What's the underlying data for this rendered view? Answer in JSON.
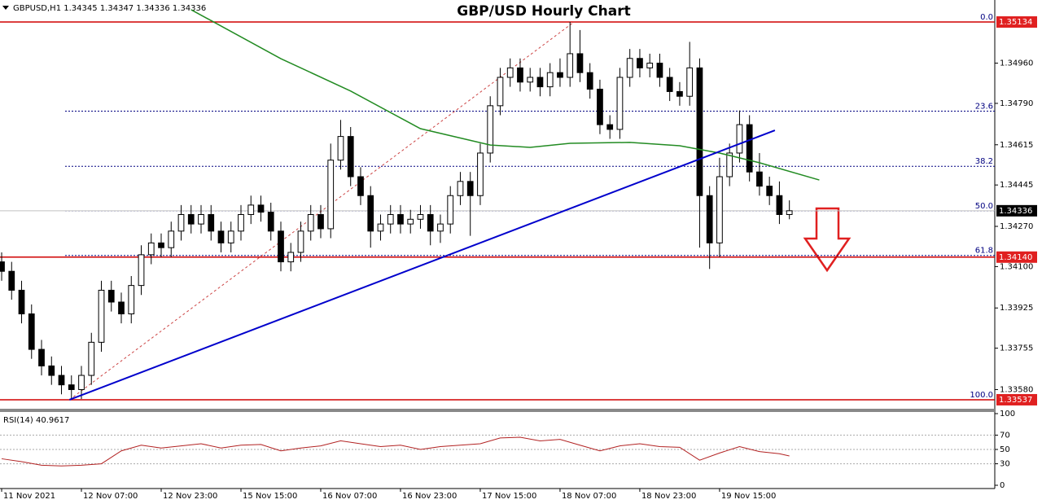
{
  "chart_data": {
    "type": "candlestick",
    "title": "GBP/USD Hourly Chart",
    "symbol": "GBPUSD,H1",
    "ohlc_header": [
      1.34345,
      1.34347,
      1.34336,
      1.34336
    ],
    "xlim": [
      -0.33,
      199.2
    ],
    "ylim": [
      1.33499,
      1.35227
    ],
    "xticks": [
      {
        "value": 0,
        "label": "11 Nov 2021"
      },
      {
        "value": 16,
        "label": "12 Nov 07:00"
      },
      {
        "value": 32,
        "label": "12 Nov 23:00"
      },
      {
        "value": 48,
        "label": "15 Nov 15:00"
      },
      {
        "value": 64,
        "label": "16 Nov 07:00"
      },
      {
        "value": 80,
        "label": "16 Nov 23:00"
      },
      {
        "value": 96,
        "label": "17 Nov 15:00"
      },
      {
        "value": 112,
        "label": "18 Nov 07:00"
      },
      {
        "value": 128,
        "label": "18 Nov 23:00"
      },
      {
        "value": 144,
        "label": "19 Nov 15:00"
      }
    ],
    "yticks": [
      {
        "value": 1.3496,
        "label": "1.34960"
      },
      {
        "value": 1.3479,
        "label": "1.34790"
      },
      1.34615,
      1.34445,
      {
        "value": 1.3427,
        "label": "1.34270"
      },
      {
        "value": 1.341,
        "label": "1.34100"
      },
      1.33925,
      1.33755,
      {
        "value": 1.3358,
        "label": "1.33580"
      }
    ],
    "key_levels": [
      1.35134,
      {
        "value": 1.3414,
        "label": "1.34140"
      },
      1.33537
    ],
    "current_price": 1.34336,
    "fibonacci": {
      "high": 1.35134,
      "low": 1.33537,
      "levels": [
        {
          "value": 0,
          "label": "0.0"
        },
        23.6,
        38.2,
        {
          "value": 50,
          "label": "50.0"
        },
        61.8,
        {
          "value": 100,
          "label": "100.0"
        }
      ]
    },
    "candles": {
      "x": [
        0,
        2,
        4,
        6,
        8,
        10,
        12,
        14,
        16,
        18,
        20,
        22,
        24,
        26,
        28,
        30,
        32,
        34,
        36,
        38,
        40,
        42,
        44,
        46,
        48,
        50,
        52,
        54,
        56,
        58,
        60,
        62,
        64,
        66,
        68,
        70,
        72,
        74,
        76,
        78,
        80,
        82,
        84,
        86,
        88,
        90,
        92,
        94,
        96,
        98,
        100,
        102,
        104,
        106,
        108,
        110,
        112,
        114,
        116,
        118,
        120,
        122,
        124,
        126,
        128,
        130,
        132,
        134,
        136,
        138,
        140,
        142,
        144,
        146,
        148,
        150,
        152,
        154,
        156,
        158
      ],
      "open": [
        1.3412,
        1.3408,
        1.34,
        1.339,
        1.3375,
        1.3368,
        1.3364,
        1.336,
        1.3358,
        1.3364,
        1.3378,
        1.34,
        1.3395,
        1.339,
        1.3402,
        1.3415,
        1.342,
        1.3418,
        1.3425,
        1.3432,
        1.3428,
        1.3432,
        1.3425,
        1.342,
        1.3425,
        1.3432,
        1.3436,
        1.3433,
        1.3425,
        1.3412,
        1.3416,
        1.3425,
        1.3432,
        1.3426,
        1.3455,
        1.3465,
        1.3448,
        1.344,
        1.3425,
        1.3428,
        1.3432,
        1.3428,
        1.343,
        1.3432,
        1.3425,
        1.3428,
        1.344,
        1.3446,
        1.344,
        1.3458,
        1.3478,
        1.349,
        1.3494,
        1.3488,
        1.349,
        1.3486,
        1.3492,
        1.349,
        1.35,
        1.3492,
        1.3485,
        1.347,
        1.3468,
        1.349,
        1.3498,
        1.3494,
        1.3496,
        1.349,
        1.3484,
        1.3482,
        1.3494,
        1.344,
        1.342,
        1.3448,
        1.3458,
        1.347,
        1.345,
        1.3444,
        1.344,
        1.3432
      ],
      "high": [
        1.3416,
        1.3412,
        1.3404,
        1.3394,
        1.3379,
        1.3372,
        1.3368,
        1.3364,
        1.3368,
        1.3382,
        1.3404,
        1.3404,
        1.3399,
        1.3406,
        1.3419,
        1.3424,
        1.3424,
        1.3429,
        1.3436,
        1.3436,
        1.3436,
        1.3436,
        1.3429,
        1.3429,
        1.3436,
        1.344,
        1.344,
        1.3437,
        1.3429,
        1.342,
        1.3429,
        1.3436,
        1.3436,
        1.3462,
        1.3472,
        1.3469,
        1.3452,
        1.3444,
        1.3432,
        1.3436,
        1.3436,
        1.3434,
        1.3436,
        1.3436,
        1.3432,
        1.3444,
        1.345,
        1.345,
        1.3462,
        1.3482,
        1.3494,
        1.3498,
        1.3498,
        1.3494,
        1.3494,
        1.3496,
        1.3498,
        1.35134,
        1.351,
        1.3496,
        1.3489,
        1.3474,
        1.3494,
        1.3502,
        1.3502,
        1.35,
        1.35,
        1.3494,
        1.3488,
        1.3505,
        1.3498,
        1.3444,
        1.3456,
        1.3462,
        1.3476,
        1.3474,
        1.3458,
        1.3448,
        1.3446,
        1.3438
      ],
      "low": [
        1.3404,
        1.3396,
        1.3386,
        1.3371,
        1.3364,
        1.336,
        1.3356,
        1.33537,
        1.3354,
        1.336,
        1.3374,
        1.3391,
        1.3386,
        1.3386,
        1.3398,
        1.3411,
        1.3414,
        1.3414,
        1.3421,
        1.3424,
        1.3424,
        1.3421,
        1.3416,
        1.3416,
        1.3421,
        1.3428,
        1.3429,
        1.3421,
        1.3408,
        1.3408,
        1.3412,
        1.3421,
        1.3422,
        1.3422,
        1.3451,
        1.3444,
        1.3436,
        1.3418,
        1.3421,
        1.3424,
        1.3424,
        1.3424,
        1.3426,
        1.3419,
        1.342,
        1.3424,
        1.3436,
        1.3423,
        1.3436,
        1.3454,
        1.3474,
        1.3486,
        1.3484,
        1.3484,
        1.3482,
        1.3482,
        1.3486,
        1.3486,
        1.3488,
        1.3481,
        1.3466,
        1.3464,
        1.3464,
        1.3486,
        1.349,
        1.349,
        1.3486,
        1.348,
        1.3478,
        1.3478,
        1.3418,
        1.3409,
        1.3414,
        1.3444,
        1.3454,
        1.3446,
        1.344,
        1.3436,
        1.3428,
        1.343
      ],
      "close": [
        1.3408,
        1.34,
        1.339,
        1.3375,
        1.3368,
        1.3364,
        1.336,
        1.3358,
        1.3364,
        1.3378,
        1.34,
        1.3395,
        1.339,
        1.3402,
        1.3415,
        1.342,
        1.3418,
        1.3425,
        1.3432,
        1.3428,
        1.3432,
        1.3425,
        1.342,
        1.3425,
        1.3432,
        1.3436,
        1.3433,
        1.3425,
        1.3412,
        1.3416,
        1.3425,
        1.3432,
        1.3426,
        1.3455,
        1.3465,
        1.3448,
        1.344,
        1.3425,
        1.3428,
        1.3432,
        1.3428,
        1.343,
        1.3432,
        1.3425,
        1.3428,
        1.344,
        1.3446,
        1.344,
        1.3458,
        1.3478,
        1.349,
        1.3494,
        1.3488,
        1.349,
        1.3486,
        1.3492,
        1.349,
        1.35,
        1.3492,
        1.3485,
        1.347,
        1.3468,
        1.349,
        1.3498,
        1.3494,
        1.3496,
        1.349,
        1.3484,
        1.3482,
        1.3494,
        1.344,
        1.342,
        1.3448,
        1.3458,
        1.347,
        1.345,
        1.3444,
        1.344,
        1.3432,
        1.34336
      ]
    },
    "ma": {
      "color": "#228b22",
      "x": [
        38,
        56,
        70,
        84,
        98,
        106,
        114,
        126,
        136,
        144,
        152,
        164
      ],
      "values": [
        1.35186,
        1.34979,
        1.34842,
        1.34683,
        1.34614,
        1.34604,
        1.34621,
        1.34625,
        1.34611,
        1.3458,
        1.34539,
        1.34466
      ]
    },
    "trendlines": [
      {
        "color": "#0000cc",
        "x": [
          13.6,
          155.1
        ],
        "values": [
          1.33537,
          1.34676
        ]
      },
      {
        "color": "#cc4444",
        "x": [
          13.6,
          114.8
        ],
        "values": [
          1.33537,
          1.35134
        ]
      }
    ],
    "rsi": {
      "label": "RSI(14)",
      "value": 40.9617,
      "color": "#b22222",
      "ylim": [
        0,
        100
      ],
      "yticks": [
        100,
        70,
        50,
        30,
        0
      ],
      "levels": [
        70,
        50,
        30
      ],
      "x": [
        0,
        4,
        8,
        12,
        16,
        20,
        24,
        28,
        32,
        36,
        40,
        44,
        48,
        52,
        56,
        60,
        64,
        68,
        72,
        76,
        80,
        84,
        88,
        92,
        96,
        100,
        104,
        108,
        112,
        116,
        120,
        124,
        128,
        132,
        136,
        140,
        144,
        148,
        152,
        156,
        158
      ],
      "values": [
        37,
        33,
        28,
        27,
        28,
        30,
        48,
        56,
        52,
        55,
        58,
        52,
        56,
        57,
        48,
        52,
        55,
        62,
        58,
        54,
        56,
        50,
        54,
        56,
        58,
        66,
        67,
        62,
        64,
        56,
        48,
        55,
        58,
        54,
        53,
        35,
        45,
        54,
        47,
        44,
        40.9617
      ]
    }
  }
}
